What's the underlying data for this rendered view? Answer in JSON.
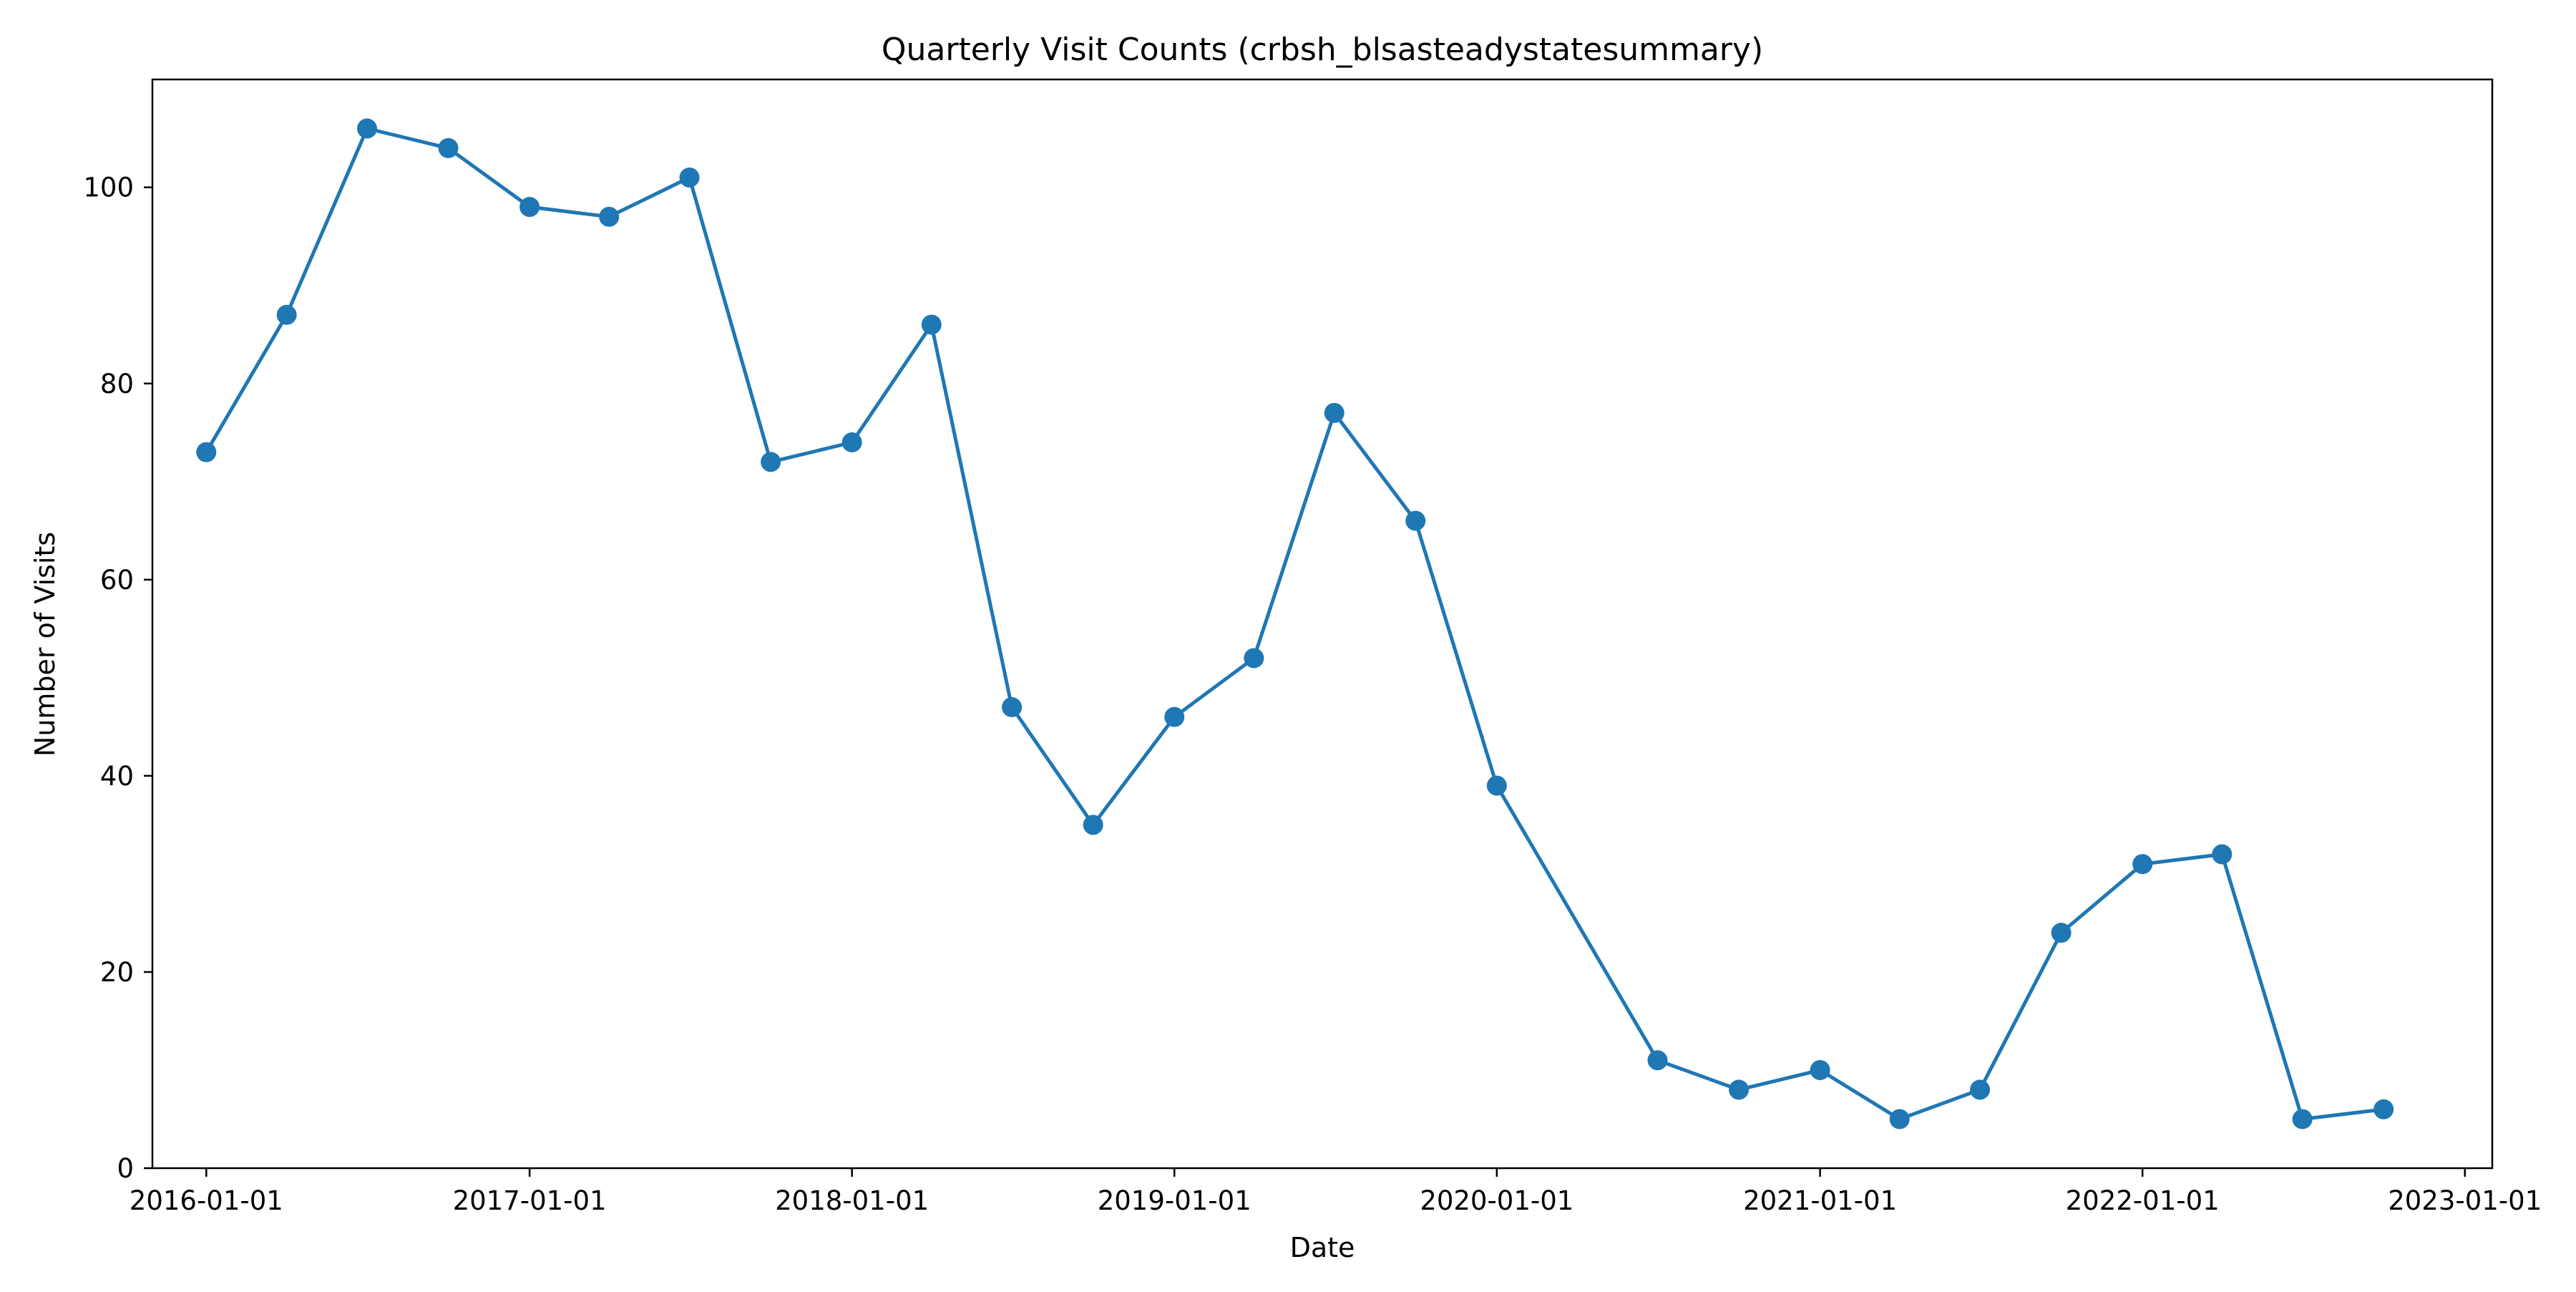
{
  "chart_data": {
    "type": "line",
    "title": "Quarterly Visit Counts (crbsh_blsasteadystatesummary)",
    "xlabel": "Date",
    "ylabel": "Number of Visits",
    "x_ticks": [
      "2016-01-01",
      "2017-01-01",
      "2018-01-01",
      "2019-01-01",
      "2020-01-01",
      "2021-01-01",
      "2022-01-01",
      "2023-01-01"
    ],
    "y_ticks": [
      0,
      20,
      40,
      60,
      80,
      100
    ],
    "ylim": [
      0,
      111
    ],
    "xlim": [
      "2015-11-01",
      "2023-02-01"
    ],
    "grid": false,
    "line_color": "#1f77b4",
    "series": [
      {
        "x": [
          "2016-01-01",
          "2016-04-01",
          "2016-07-01",
          "2016-10-01",
          "2017-01-01",
          "2017-04-01",
          "2017-07-01",
          "2017-10-01",
          "2018-01-01",
          "2018-04-01",
          "2018-07-01",
          "2018-10-01",
          "2019-01-01",
          "2019-04-01",
          "2019-07-01",
          "2019-10-01",
          "2020-01-01",
          "2020-07-01",
          "2020-10-01",
          "2021-01-01",
          "2021-04-01",
          "2021-07-01",
          "2021-10-01",
          "2022-01-01",
          "2022-04-01",
          "2022-07-01",
          "2022-10-01"
        ],
        "values": [
          73,
          87,
          106,
          104,
          98,
          97,
          101,
          72,
          74,
          86,
          47,
          35,
          46,
          52,
          77,
          66,
          39,
          11,
          8,
          10,
          5,
          8,
          24,
          31,
          32,
          5,
          6
        ]
      }
    ]
  }
}
